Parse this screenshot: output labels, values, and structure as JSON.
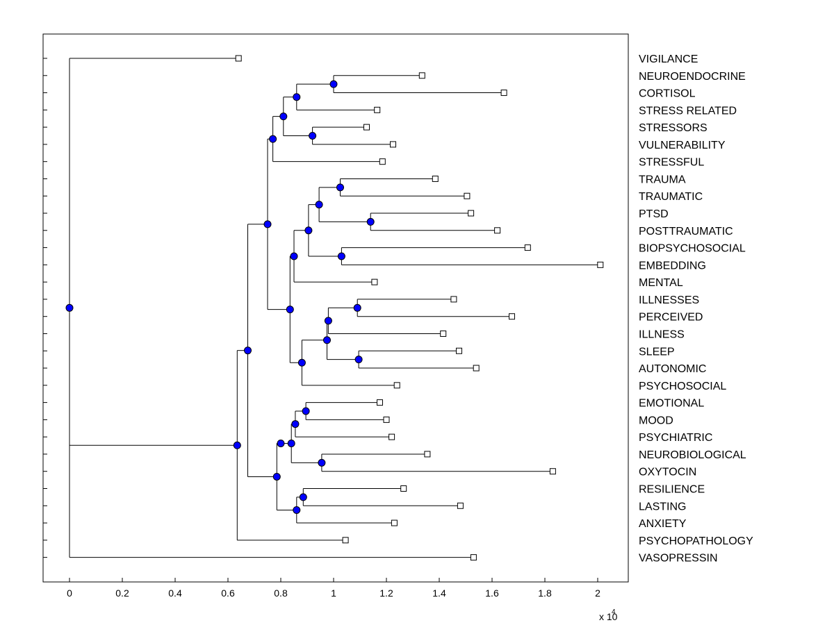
{
  "chart_data": {
    "type": "dendrogram",
    "title": "",
    "xlabel": "",
    "ylabel": "",
    "x_scale_label": "x 10",
    "x_scale_exponent": "4",
    "xlim": [
      -0.1,
      2.11
    ],
    "xticks": [
      0,
      0.2,
      0.4,
      0.6,
      0.8,
      1,
      1.2,
      1.4,
      1.6,
      1.8,
      2
    ],
    "xtick_labels": [
      "0",
      "0.2",
      "0.4",
      "0.6",
      "0.8",
      "1",
      "1.2",
      "1.4",
      "1.6",
      "1.8",
      "2"
    ],
    "leaves": [
      {
        "label": "VIGILANCE",
        "x": 0.64
      },
      {
        "label": "NEUROENDOCRINE",
        "x": 1.335
      },
      {
        "label": "CORTISOL",
        "x": 1.645
      },
      {
        "label": "STRESS RELATED",
        "x": 1.165
      },
      {
        "label": "STRESSORS",
        "x": 1.125
      },
      {
        "label": "VULNERABILITY",
        "x": 1.225
      },
      {
        "label": "STRESSFUL",
        "x": 1.185
      },
      {
        "label": "TRAUMA",
        "x": 1.385
      },
      {
        "label": "TRAUMATIC",
        "x": 1.505
      },
      {
        "label": "PTSD",
        "x": 1.52
      },
      {
        "label": "POSTTRAUMATIC",
        "x": 1.62
      },
      {
        "label": "BIOPSYCHOSOCIAL",
        "x": 1.735
      },
      {
        "label": "EMBEDDING",
        "x": 2.01
      },
      {
        "label": "MENTAL",
        "x": 1.155
      },
      {
        "label": "ILLNESSES",
        "x": 1.455
      },
      {
        "label": "PERCEIVED",
        "x": 1.675
      },
      {
        "label": "ILLNESS",
        "x": 1.415
      },
      {
        "label": "SLEEP",
        "x": 1.475
      },
      {
        "label": "AUTONOMIC",
        "x": 1.54
      },
      {
        "label": "PSYCHOSOCIAL",
        "x": 1.24
      },
      {
        "label": "EMOTIONAL",
        "x": 1.175
      },
      {
        "label": "MOOD",
        "x": 1.2
      },
      {
        "label": "PSYCHIATRIC",
        "x": 1.22
      },
      {
        "label": "NEUROBIOLOGICAL",
        "x": 1.355
      },
      {
        "label": "OXYTOCIN",
        "x": 1.83
      },
      {
        "label": "RESILIENCE",
        "x": 1.265
      },
      {
        "label": "LASTING",
        "x": 1.48
      },
      {
        "label": "ANXIETY",
        "x": 1.23
      },
      {
        "label": "PSYCHOPATHOLOGY",
        "x": 1.045
      },
      {
        "label": "VASOPRESSIN",
        "x": 1.53
      }
    ],
    "tree": {
      "h": 0,
      "c": [
        {
          "leaf": 0
        },
        {
          "h": 0.635,
          "c": [
            {
              "h": 0.675,
              "c": [
                {
                  "h": 0.75,
                  "c": [
                    {
                      "h": 0.77,
                      "c": [
                        {
                          "h": 0.81,
                          "c": [
                            {
                              "h": 0.86,
                              "c": [
                                {
                                  "h": 1.0,
                                  "c": [
                                    {
                                      "leaf": 1
                                    },
                                    {
                                      "leaf": 2
                                    }
                                  ]
                                },
                                {
                                  "leaf": 3
                                }
                              ]
                            },
                            {
                              "h": 0.92,
                              "c": [
                                {
                                  "leaf": 4
                                },
                                {
                                  "leaf": 5
                                }
                              ]
                            }
                          ]
                        },
                        {
                          "leaf": 6
                        }
                      ]
                    },
                    {
                      "h": 0.835,
                      "c": [
                        {
                          "h": 0.85,
                          "c": [
                            {
                              "h": 0.905,
                              "c": [
                                {
                                  "h": 0.945,
                                  "c": [
                                    {
                                      "h": 1.025,
                                      "c": [
                                        {
                                          "leaf": 7
                                        },
                                        {
                                          "leaf": 8
                                        }
                                      ]
                                    },
                                    {
                                      "h": 1.14,
                                      "c": [
                                        {
                                          "leaf": 9
                                        },
                                        {
                                          "leaf": 10
                                        }
                                      ]
                                    }
                                  ]
                                },
                                {
                                  "h": 1.03,
                                  "c": [
                                    {
                                      "leaf": 11
                                    },
                                    {
                                      "leaf": 12
                                    }
                                  ]
                                }
                              ]
                            },
                            {
                              "leaf": 13
                            }
                          ]
                        },
                        {
                          "h": 0.88,
                          "c": [
                            {
                              "h": 0.975,
                              "c": [
                                {
                                  "h": 0.98,
                                  "c": [
                                    {
                                      "h": 1.09,
                                      "c": [
                                        {
                                          "leaf": 14
                                        },
                                        {
                                          "leaf": 15
                                        }
                                      ]
                                    },
                                    {
                                      "leaf": 16
                                    }
                                  ]
                                },
                                {
                                  "h": 1.095,
                                  "c": [
                                    {
                                      "leaf": 17
                                    },
                                    {
                                      "leaf": 18
                                    }
                                  ]
                                }
                              ]
                            },
                            {
                              "leaf": 19
                            }
                          ]
                        }
                      ]
                    }
                  ]
                },
                {
                  "h": 0.785,
                  "c": [
                    {
                      "h": 0.8,
                      "c": [
                        {
                          "h": 0.84,
                          "c": [
                            {
                              "h": 0.855,
                              "c": [
                                {
                                  "h": 0.895,
                                  "c": [
                                    {
                                      "leaf": 20
                                    },
                                    {
                                      "leaf": 21
                                    }
                                  ]
                                },
                                {
                                  "leaf": 22
                                }
                              ]
                            },
                            {
                              "h": 0.955,
                              "c": [
                                {
                                  "leaf": 23
                                },
                                {
                                  "leaf": 24
                                }
                              ]
                            }
                          ]
                        }
                      ]
                    },
                    {
                      "h": 0.86,
                      "c": [
                        {
                          "h": 0.885,
                          "c": [
                            {
                              "leaf": 25
                            },
                            {
                              "leaf": 26
                            }
                          ]
                        },
                        {
                          "leaf": 27
                        }
                      ]
                    }
                  ]
                }
              ]
            },
            {
              "leaf": 28
            }
          ]
        },
        {
          "leaf": 29
        }
      ]
    },
    "colors": {
      "node_fill": "#0000ff",
      "line": "#000000",
      "leaf_marker_fill": "#ffffff",
      "background": "#ffffff"
    }
  }
}
